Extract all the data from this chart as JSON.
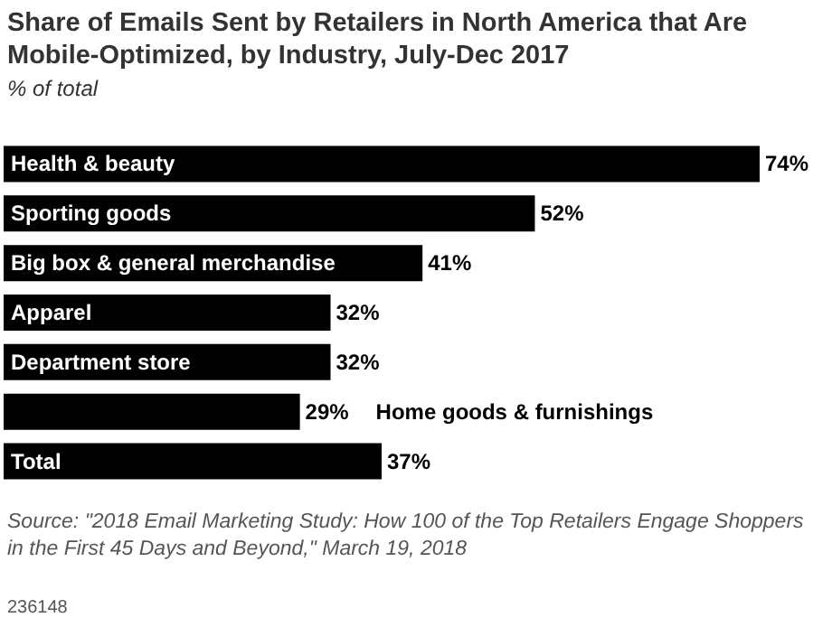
{
  "chart_data": {
    "type": "bar",
    "orientation": "horizontal",
    "title": "Share of Emails Sent by Retailers in North America that Are Mobile-Optimized, by Industry, July-Dec 2017",
    "subtitle": "% of total",
    "categories": [
      "Health & beauty",
      "Sporting goods",
      "Big box & general merchandise",
      "Apparel",
      "Department store",
      "Home goods & furnishings",
      "Total"
    ],
    "values": [
      74,
      52,
      41,
      32,
      32,
      29,
      37
    ],
    "value_labels": [
      "74%",
      "52%",
      "41%",
      "32%",
      "32%",
      "29%",
      "37%"
    ],
    "color": "#000000",
    "annotations": [
      "Source: \"2018 Email Marketing Study: How 100 of the Top Retailers Engage Shoppers in the First 45 Days and Beyond,\" March 19, 2018",
      "236148"
    ]
  }
}
